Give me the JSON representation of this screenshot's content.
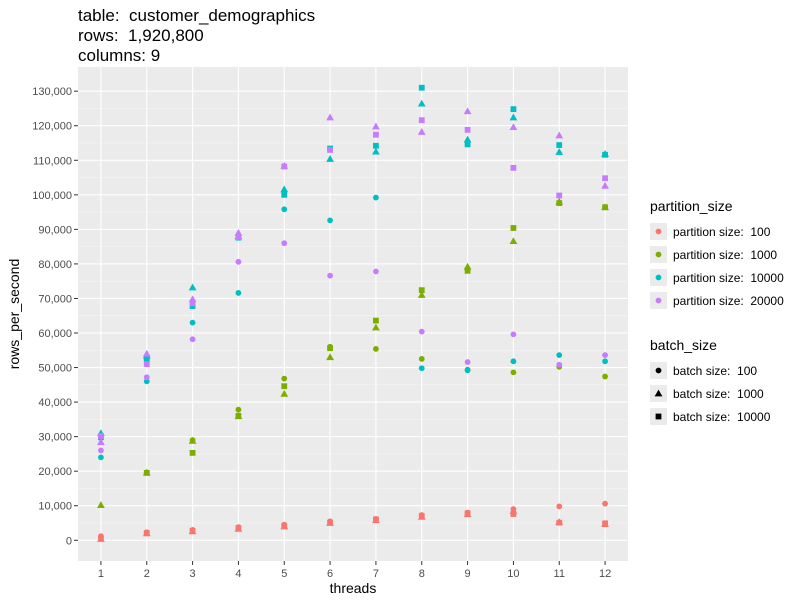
{
  "title_lines": [
    "table:  customer_demographics",
    "rows:  1,920,800",
    "columns: 9"
  ],
  "chart_data": {
    "type": "scatter",
    "xlabel": "threads",
    "ylabel": "rows_per_second",
    "x_ticks": [
      "1",
      "2",
      "3",
      "4",
      "5",
      "6",
      "7",
      "8",
      "9",
      "10",
      "11",
      "12"
    ],
    "y_ticks": [
      "0",
      "10,000",
      "20,000",
      "30,000",
      "40,000",
      "50,000",
      "60,000",
      "70,000",
      "80,000",
      "90,000",
      "100,000",
      "110,000",
      "120,000",
      "130,000"
    ],
    "ylim": [
      -6000,
      137000
    ],
    "grid": true,
    "color_legend": {
      "title": "partition_size",
      "entries": [
        {
          "key": "100",
          "label": "partition size:  100",
          "color": "#F8766D"
        },
        {
          "key": "1000",
          "label": "partition size:  1000",
          "color": "#7CAE00"
        },
        {
          "key": "10000",
          "label": "partition size:  10000",
          "color": "#00BFC4"
        },
        {
          "key": "20000",
          "label": "partition size:  20000",
          "color": "#C77CFF"
        }
      ]
    },
    "shape_legend": {
      "title": "batch_size",
      "entries": [
        {
          "key": "100",
          "label": "batch size:  100",
          "shape": "circle"
        },
        {
          "key": "1000",
          "label": "batch size:  1000",
          "shape": "triangle"
        },
        {
          "key": "10000",
          "label": "batch size:  10000",
          "shape": "square"
        }
      ]
    },
    "series": [
      {
        "partition_size": "100",
        "batch_size": "100",
        "x": [
          1,
          2,
          3,
          4,
          5,
          6,
          7,
          8,
          9,
          10,
          11,
          12
        ],
        "y": [
          1200,
          2300,
          3000,
          3800,
          4500,
          5500,
          6200,
          7300,
          8000,
          9000,
          9800,
          10600
        ]
      },
      {
        "partition_size": "100",
        "batch_size": "1000",
        "x": [
          1,
          2,
          3,
          4,
          5,
          6,
          7,
          8,
          9,
          10,
          11,
          12
        ],
        "y": [
          400,
          2000,
          2600,
          3300,
          4000,
          5000,
          5800,
          6800,
          7600,
          8500,
          5300,
          4700
        ]
      },
      {
        "partition_size": "100",
        "batch_size": "10000",
        "x": [
          1,
          2,
          3,
          4,
          5,
          6,
          7,
          8,
          9,
          10,
          11,
          12
        ],
        "y": [
          500,
          2100,
          2700,
          3500,
          4200,
          5100,
          6000,
          7000,
          7800,
          7600,
          5100,
          4900
        ]
      },
      {
        "partition_size": "1000",
        "batch_size": "100",
        "x": [
          3,
          4,
          5,
          6,
          7,
          8,
          9,
          10,
          11,
          12
        ],
        "y": [
          29000,
          37800,
          46800,
          56000,
          55400,
          52500,
          49400,
          48600,
          50200,
          47400
        ]
      },
      {
        "partition_size": "1000",
        "batch_size": "1000",
        "x": [
          1,
          2,
          3,
          4,
          5,
          6,
          7,
          8,
          9,
          10,
          11,
          12
        ],
        "y": [
          10200,
          19600,
          28800,
          35900,
          42400,
          53000,
          61600,
          71000,
          79200,
          86600,
          98000,
          96400
        ]
      },
      {
        "partition_size": "1000",
        "batch_size": "10000",
        "x": [
          2,
          3,
          4,
          5,
          6,
          7,
          8,
          9,
          10,
          11,
          12
        ],
        "y": [
          19500,
          25300,
          36000,
          44600,
          55600,
          63600,
          72400,
          78000,
          90400,
          97600,
          96400
        ]
      },
      {
        "partition_size": "10000",
        "batch_size": "100",
        "x": [
          1,
          2,
          3,
          4,
          5,
          6,
          7,
          8,
          9,
          10,
          11,
          12
        ],
        "y": [
          24000,
          46000,
          63000,
          71600,
          95800,
          92600,
          99200,
          49800,
          49200,
          51800,
          53600,
          51800
        ]
      },
      {
        "partition_size": "10000",
        "batch_size": "1000",
        "x": [
          1,
          2,
          3,
          4,
          5,
          6,
          7,
          8,
          9,
          10,
          11,
          12
        ],
        "y": [
          31000,
          53400,
          73200,
          88000,
          101600,
          110400,
          112500,
          126400,
          116000,
          122400,
          112400,
          111800
        ]
      },
      {
        "partition_size": "10000",
        "batch_size": "10000",
        "x": [
          1,
          2,
          3,
          4,
          5,
          6,
          7,
          8,
          9,
          10,
          11,
          12
        ],
        "y": [
          29800,
          52400,
          67800,
          87600,
          100000,
          113400,
          114200,
          131000,
          114600,
          124800,
          114400,
          111600
        ]
      },
      {
        "partition_size": "20000",
        "batch_size": "100",
        "x": [
          1,
          2,
          3,
          4,
          5,
          6,
          7,
          8,
          9,
          10,
          11,
          12
        ],
        "y": [
          26000,
          47200,
          58200,
          80600,
          86000,
          76600,
          77800,
          60400,
          51600,
          59600,
          50800,
          53600
        ]
      },
      {
        "partition_size": "20000",
        "batch_size": "1000",
        "x": [
          1,
          2,
          3,
          4,
          5,
          6,
          7,
          8,
          9,
          10,
          11,
          12
        ],
        "y": [
          28400,
          54000,
          69800,
          89000,
          108400,
          122400,
          119800,
          118200,
          124200,
          119600,
          117200,
          102600
        ]
      },
      {
        "partition_size": "20000",
        "batch_size": "10000",
        "x": [
          1,
          2,
          3,
          4,
          5,
          6,
          7,
          8,
          9,
          10,
          11,
          12
        ],
        "y": [
          30200,
          51000,
          68600,
          87800,
          108200,
          113000,
          117400,
          121600,
          118800,
          107800,
          99800,
          104800
        ]
      }
    ]
  }
}
